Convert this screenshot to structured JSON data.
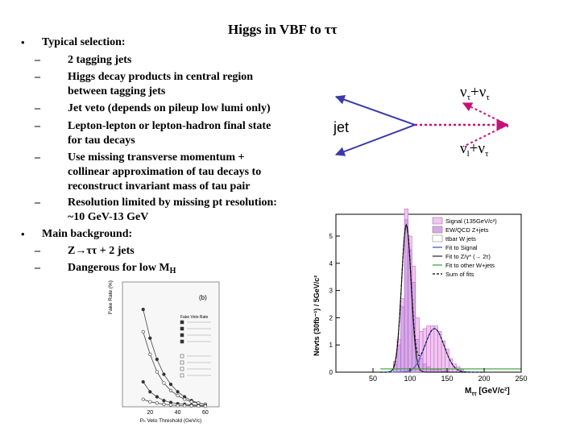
{
  "slide": {
    "title": "Higgs in VBF to ττ",
    "bullets": [
      {
        "text": "Typical selection:",
        "sub": [
          "2 tagging jets",
          "Higgs decay products in central region",
          "between tagging jets",
          "Jet veto (depends on pileup low lumi only)",
          "Lepton-lepton or lepton-hadron final state",
          "for tau decays",
          "Use missing transverse momentum +",
          "collinear approximation of tau decays to",
          "reconstruct invariant mass of tau pair",
          "Resolution limited by missing pt resolution:",
          "~10 GeV-13 GeV"
        ]
      },
      {
        "text": "Main background:",
        "sub": [
          "Z→ττ + 2 jets",
          "Dangerous for low M"
        ],
        "sub_mh": "H"
      }
    ],
    "diagram": {
      "jet_label": "jet",
      "top_label": "ντ+ντ",
      "top_label_display": "ν",
      "top_sub": "τ",
      "top_plus": "+ν",
      "top_tail": "τ",
      "bot_label_display": "ν",
      "bot_sub": "l",
      "bot_plus": "+ν",
      "bot_tail": "τ"
    },
    "mass_plot": {
      "ylabel": "Nevts (30fb⁻¹) / 5GeV/c²",
      "xlabel": "M",
      "xlabel_sub": "ττ",
      "xlabel_unit": "[GeV/c²]",
      "legend": [
        "Signal (135GeV/c²)",
        "EW/QCD Z+jets",
        "ttbar W jets",
        "Fit to Signal",
        "Fit to Z/γ* (→ 2τ)",
        "Fit to other W+jets",
        "Sum of fits"
      ],
      "yticks": [
        "0",
        "1",
        "2",
        "3",
        "4",
        "5"
      ],
      "xticks": [
        "50",
        "100",
        "150",
        "200",
        "250"
      ]
    },
    "veto_plot": {
      "ylabel": "Fake Rate (%)",
      "xlabel": "Pₙ Veto Threshold (GeV/c)",
      "xticks": [
        "20",
        "40",
        "60"
      ],
      "corner": "(b)",
      "legend_title": "Fake Veto Rate"
    }
  },
  "chart_data": [
    {
      "type": "bar",
      "title": "",
      "xlabel": "Mττ [GeV/c²]",
      "ylabel": "Nevts (30fb⁻¹) / 5GeV/c²",
      "xlim": [
        0,
        250
      ],
      "ylim": [
        0,
        5.8
      ],
      "x": [
        80,
        85,
        90,
        95,
        100,
        105,
        110,
        115,
        120,
        125,
        130,
        135,
        140,
        145,
        150,
        155,
        160,
        165,
        170
      ],
      "series": [
        {
          "name": "Signal (135GeV/c²)",
          "values": [
            0.1,
            0.2,
            0.3,
            0.4,
            0.5,
            0.6,
            0.8,
            1.0,
            1.3,
            1.5,
            1.6,
            1.6,
            1.4,
            1.1,
            0.8,
            0.5,
            0.3,
            0.2,
            0.1
          ]
        },
        {
          "name": "EW/QCD Z+jets",
          "values": [
            0.3,
            1.0,
            2.4,
            5.6,
            4.5,
            3.3,
            1.2,
            0.5,
            0.3,
            0.2,
            0.1,
            0.1,
            0.1,
            0.05,
            0.05,
            0,
            0,
            0,
            0
          ]
        }
      ]
    }
  ]
}
